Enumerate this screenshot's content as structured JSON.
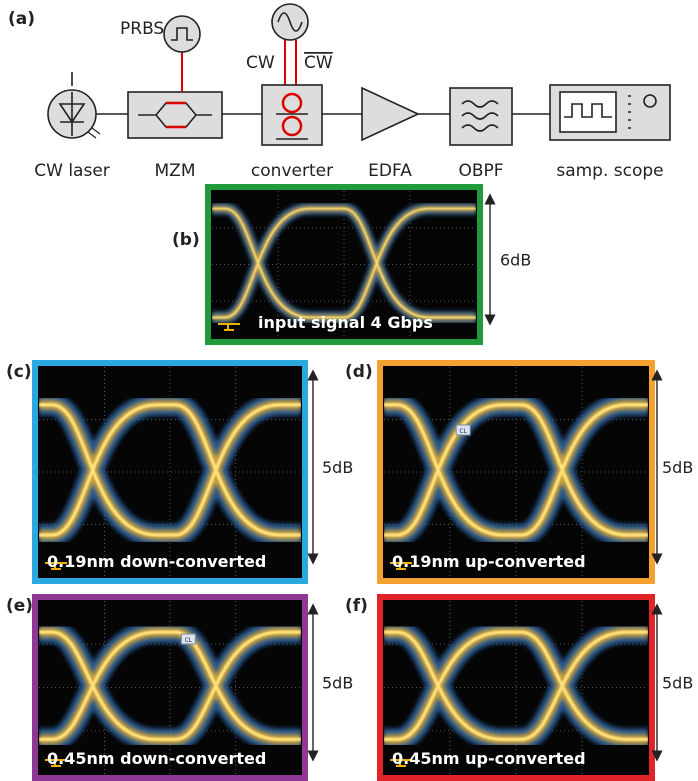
{
  "panel_a": {
    "label": "(a)",
    "prbs": "PRBS",
    "cw": "CW",
    "cw_bar": "CW",
    "components": [
      "CW laser",
      "MZM",
      "converter",
      "EDFA",
      "OBPF",
      "samp. scope"
    ]
  },
  "eye_panels": [
    {
      "label": "(b)",
      "caption": "input signal 4 Gbps",
      "scale": "6dB"
    },
    {
      "label": "(c)",
      "caption": "0.19nm down-converted",
      "scale": "5dB"
    },
    {
      "label": "(d)",
      "caption": "0.19nm up-converted",
      "scale": "5dB",
      "marker": "CL"
    },
    {
      "label": "(e)",
      "caption": "0.45nm down-converted",
      "scale": "5dB",
      "marker": "CL"
    },
    {
      "label": "(f)",
      "caption": "0.45nm up-converted",
      "scale": "5dB"
    }
  ]
}
